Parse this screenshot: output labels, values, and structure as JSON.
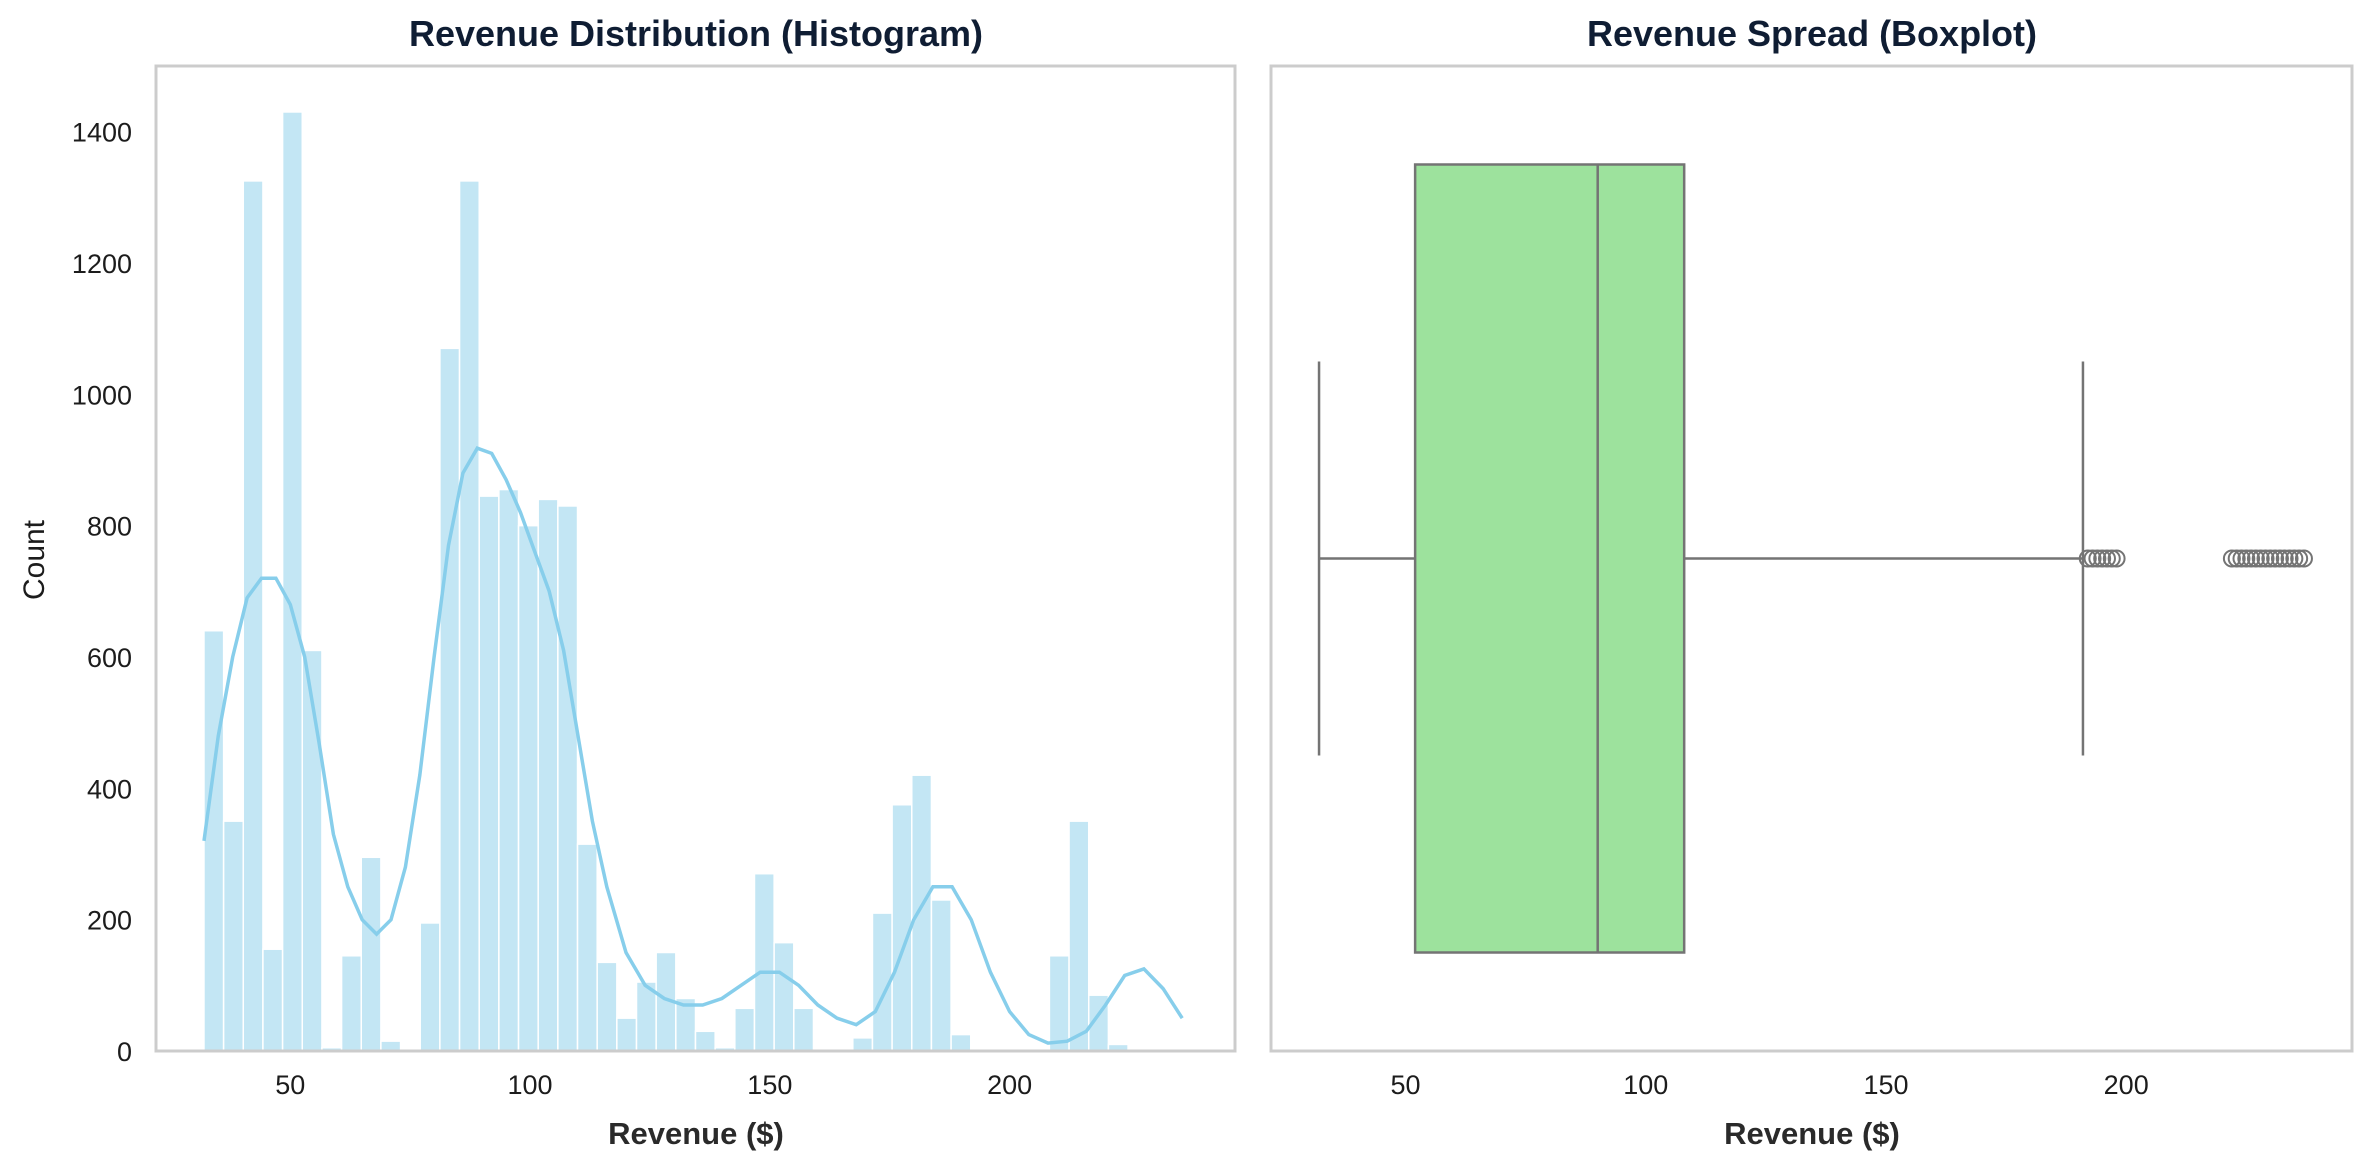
{
  "colors": {
    "histogram_bar": "#c3e6f4",
    "kde_line": "#87ceeb",
    "box_fill": "#9de29d",
    "box_edge": "#747474",
    "frame": "#cccccc"
  },
  "chart_data": [
    {
      "type": "histogram",
      "title": "Revenue Distribution (Histogram)",
      "xlabel": "Revenue ($)",
      "ylabel": "Count",
      "xlim": [
        22,
        247
      ],
      "ylim": [
        0,
        1500
      ],
      "xticks": [
        50,
        100,
        150,
        200
      ],
      "yticks": [
        0,
        200,
        400,
        600,
        800,
        1000,
        1200,
        1400
      ],
      "grid": false,
      "bin_start": 32,
      "bin_width": 4.1,
      "counts": [
        640,
        350,
        1325,
        155,
        1430,
        610,
        5,
        145,
        295,
        15,
        0,
        195,
        1070,
        1325,
        845,
        855,
        800,
        840,
        830,
        315,
        135,
        50,
        105,
        150,
        80,
        30,
        5,
        65,
        270,
        165,
        65,
        0,
        0,
        20,
        210,
        375,
        420,
        230,
        25,
        0,
        0,
        0,
        0,
        145,
        350,
        85,
        10
      ],
      "kde": {
        "x": [
          32,
          35,
          38,
          41,
          44,
          47,
          50,
          53,
          56,
          59,
          62,
          65,
          68,
          71,
          74,
          77,
          80,
          83,
          86,
          89,
          92,
          95,
          98,
          101,
          104,
          107,
          110,
          113,
          116,
          120,
          124,
          128,
          132,
          136,
          140,
          144,
          148,
          152,
          156,
          160,
          164,
          168,
          172,
          176,
          180,
          184,
          188,
          192,
          196,
          200,
          204,
          208,
          212,
          216,
          220,
          224,
          228,
          232,
          236
        ],
        "y": [
          320,
          480,
          600,
          690,
          720,
          720,
          680,
          600,
          470,
          330,
          250,
          200,
          178,
          200,
          280,
          420,
          600,
          770,
          880,
          918,
          910,
          870,
          820,
          760,
          700,
          610,
          480,
          350,
          250,
          150,
          100,
          80,
          70,
          70,
          80,
          100,
          120,
          120,
          100,
          70,
          50,
          40,
          60,
          120,
          200,
          250,
          250,
          200,
          120,
          60,
          25,
          12,
          15,
          30,
          70,
          115,
          125,
          95,
          50
        ]
      }
    },
    {
      "type": "box",
      "title": "Revenue Spread (Boxplot)",
      "xlabel": "Revenue ($)",
      "xlim": [
        22,
        247
      ],
      "xticks": [
        50,
        100,
        150,
        200
      ],
      "grid": false,
      "whisker_low": 32,
      "q1": 52,
      "median": 90,
      "q3": 108,
      "whisker_high": 191,
      "outliers": [
        192,
        193,
        194,
        195,
        196,
        197,
        198,
        222,
        223,
        224,
        225,
        226,
        227,
        228,
        229,
        230,
        231,
        232,
        233,
        234,
        235,
        236,
        237
      ]
    }
  ]
}
